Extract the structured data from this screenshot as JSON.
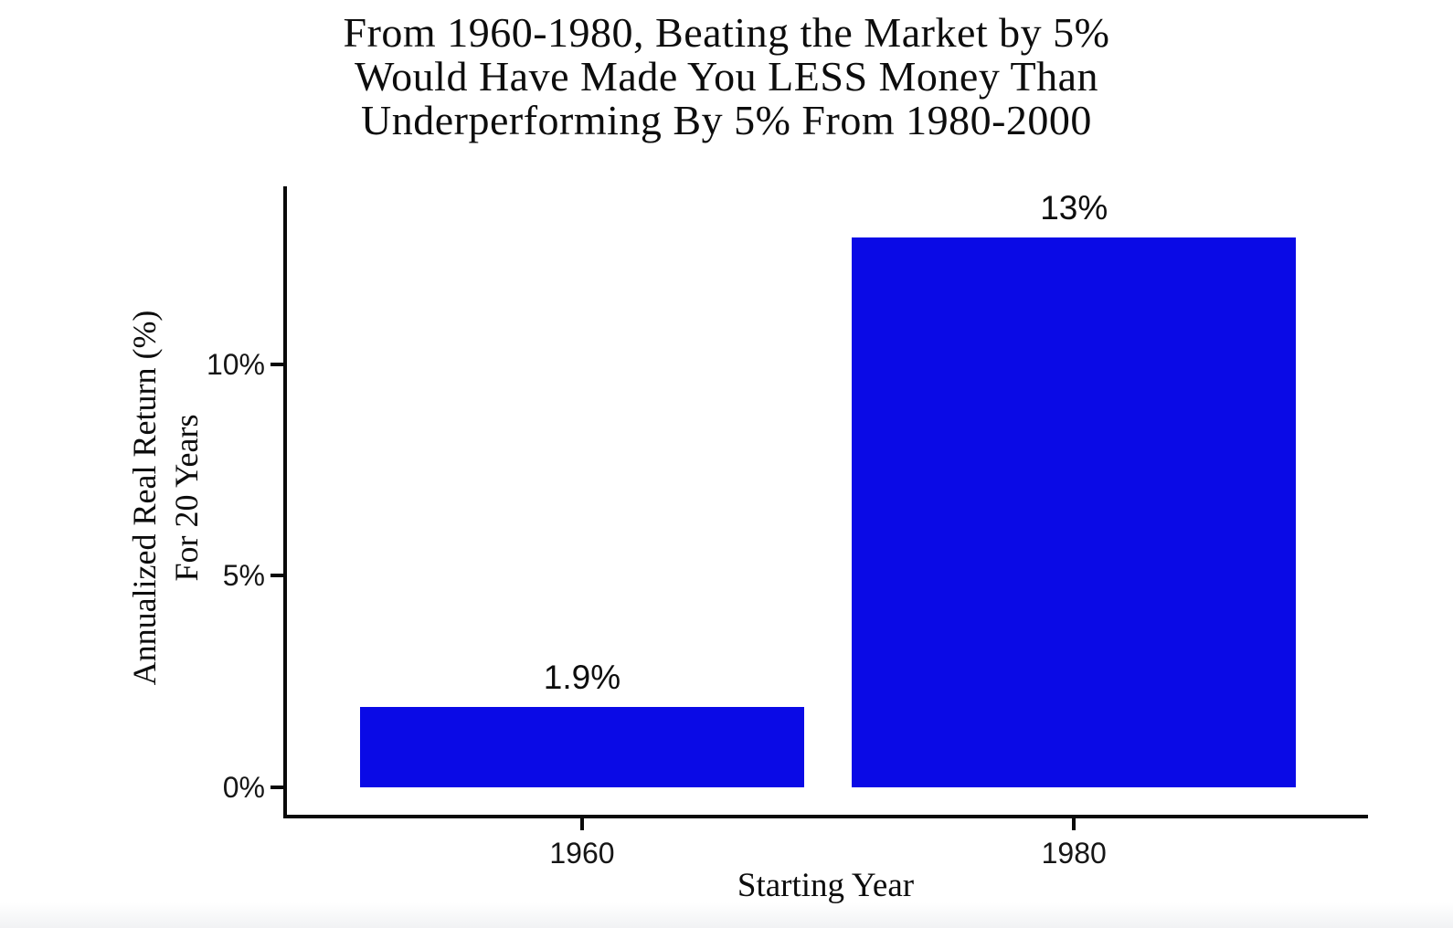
{
  "chart_data": {
    "type": "bar",
    "title": "From 1960-1980, Beating the Market by 5%\nWould Have Made You LESS Money Than\nUnderperforming By 5% From 1980-2000",
    "xlabel": "Starting Year",
    "ylabel": "Annualized Real Return (%)\nFor 20 Years",
    "categories": [
      "1960",
      "1980"
    ],
    "values": [
      1.9,
      13
    ],
    "bar_value_labels": [
      "1.9%",
      "13%"
    ],
    "yticks": [
      {
        "value": 0,
        "label": "0%"
      },
      {
        "value": 5,
        "label": "5%"
      },
      {
        "value": 10,
        "label": "10%"
      }
    ],
    "ylim": [
      0,
      14.2
    ],
    "grid": false,
    "legend": false,
    "bar_color": "#0a0ae6",
    "axis_color": "#0a0a0a",
    "text_color": "#0d0d0d"
  }
}
